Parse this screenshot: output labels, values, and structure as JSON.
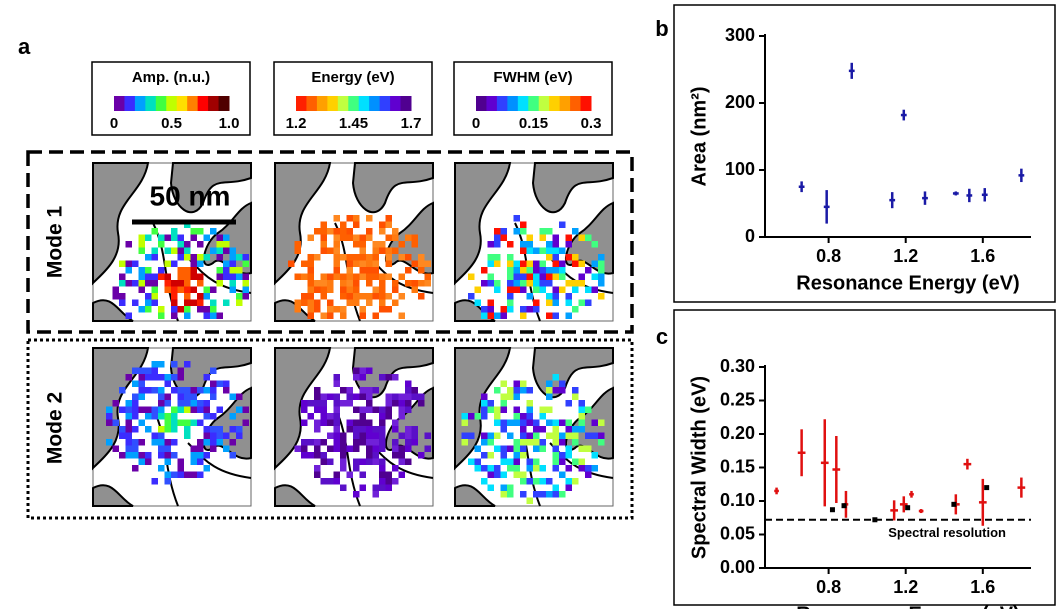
{
  "panel_a": {
    "label": "a",
    "scale_bar": "50 nm",
    "rows": [
      "Mode 1",
      "Mode 2"
    ],
    "colorbars": [
      {
        "title": "Amp. (n.u.)",
        "lim": [
          0,
          1
        ],
        "ticks": [
          0,
          0.5,
          {
            "value": 1,
            "label": "1.0"
          }
        ]
      },
      {
        "title": "Energy (eV)",
        "lim": [
          1.2,
          1.7
        ],
        "ticks": [
          1.2,
          1.45,
          1.7
        ]
      },
      {
        "title": "FWHM (eV)",
        "lim": [
          0,
          0.3
        ],
        "ticks": [
          0,
          0.15,
          0.3
        ]
      }
    ]
  },
  "chart_data": [
    {
      "type": "scatter",
      "panel": "b",
      "xlabel": "Resonance Energy (eV)",
      "ylabel": "Area (nm²)",
      "xlim": [
        0.47,
        1.85
      ],
      "ylim": [
        0,
        300
      ],
      "xticks": [
        0.8,
        1.2,
        1.6
      ],
      "yticks": [
        0,
        100,
        200,
        300
      ],
      "series": [
        {
          "color": "#1a1aa6",
          "x": [
            0.66,
            0.79,
            0.92,
            1.13,
            1.19,
            1.3,
            1.46,
            1.53,
            1.61,
            1.8
          ],
          "values": [
            75,
            45,
            248,
            55,
            182,
            58,
            65,
            62,
            63,
            92
          ],
          "errors": [
            8,
            25,
            12,
            12,
            8,
            10,
            3,
            10,
            10,
            10
          ],
          "xerr": [
            0.015,
            0.015,
            0.015,
            0.015,
            0.015,
            0.015,
            0.015,
            0.015,
            0.015,
            0.015
          ]
        }
      ]
    },
    {
      "type": "scatter",
      "panel": "c",
      "xlabel": "Resonance Energy (eV)",
      "ylabel": "Spectral Width (eV)",
      "xlim": [
        0.47,
        1.85
      ],
      "ylim": [
        0,
        0.3
      ],
      "xticks": [
        0.8,
        1.2,
        1.6
      ],
      "yticks": [
        {
          "value": 0,
          "label": "0.00"
        },
        {
          "value": 0.05,
          "label": "0.05"
        },
        {
          "value": 0.1,
          "label": "0.10"
        },
        {
          "value": 0.15,
          "label": "0.15"
        },
        {
          "value": 0.2,
          "label": "0.20"
        },
        {
          "value": 0.25,
          "label": "0.25"
        },
        {
          "value": 0.3,
          "label": "0.30"
        }
      ],
      "reference_line": {
        "value": 0.072,
        "label": "Spectral resolution"
      },
      "series": [
        {
          "color": "#e01010",
          "x": [
            0.53,
            0.66,
            0.78,
            0.84,
            0.89,
            1.14,
            1.19,
            1.23,
            1.28,
            1.46,
            1.52,
            1.6,
            1.8
          ],
          "values": [
            0.115,
            0.172,
            0.157,
            0.147,
            0.095,
            0.086,
            0.095,
            0.11,
            0.085,
            0.095,
            0.155,
            0.098,
            0.12
          ],
          "errors": [
            0.005,
            0.035,
            0.065,
            0.05,
            0.02,
            0.015,
            0.012,
            0.005,
            0.003,
            0.015,
            0.008,
            0.035,
            0.015
          ],
          "xerr": [
            0.012,
            0.02,
            0.02,
            0.02,
            0.012,
            0.02,
            0.02,
            0.012,
            0.012,
            0.02,
            0.02,
            0.02,
            0.02
          ]
        },
        {
          "color": "#000000",
          "x": [
            0.82,
            0.88,
            1.04,
            1.21,
            1.45,
            1.62
          ],
          "values": [
            0.087,
            0.093,
            0.072,
            0.09,
            0.095,
            0.12
          ]
        }
      ]
    }
  ]
}
